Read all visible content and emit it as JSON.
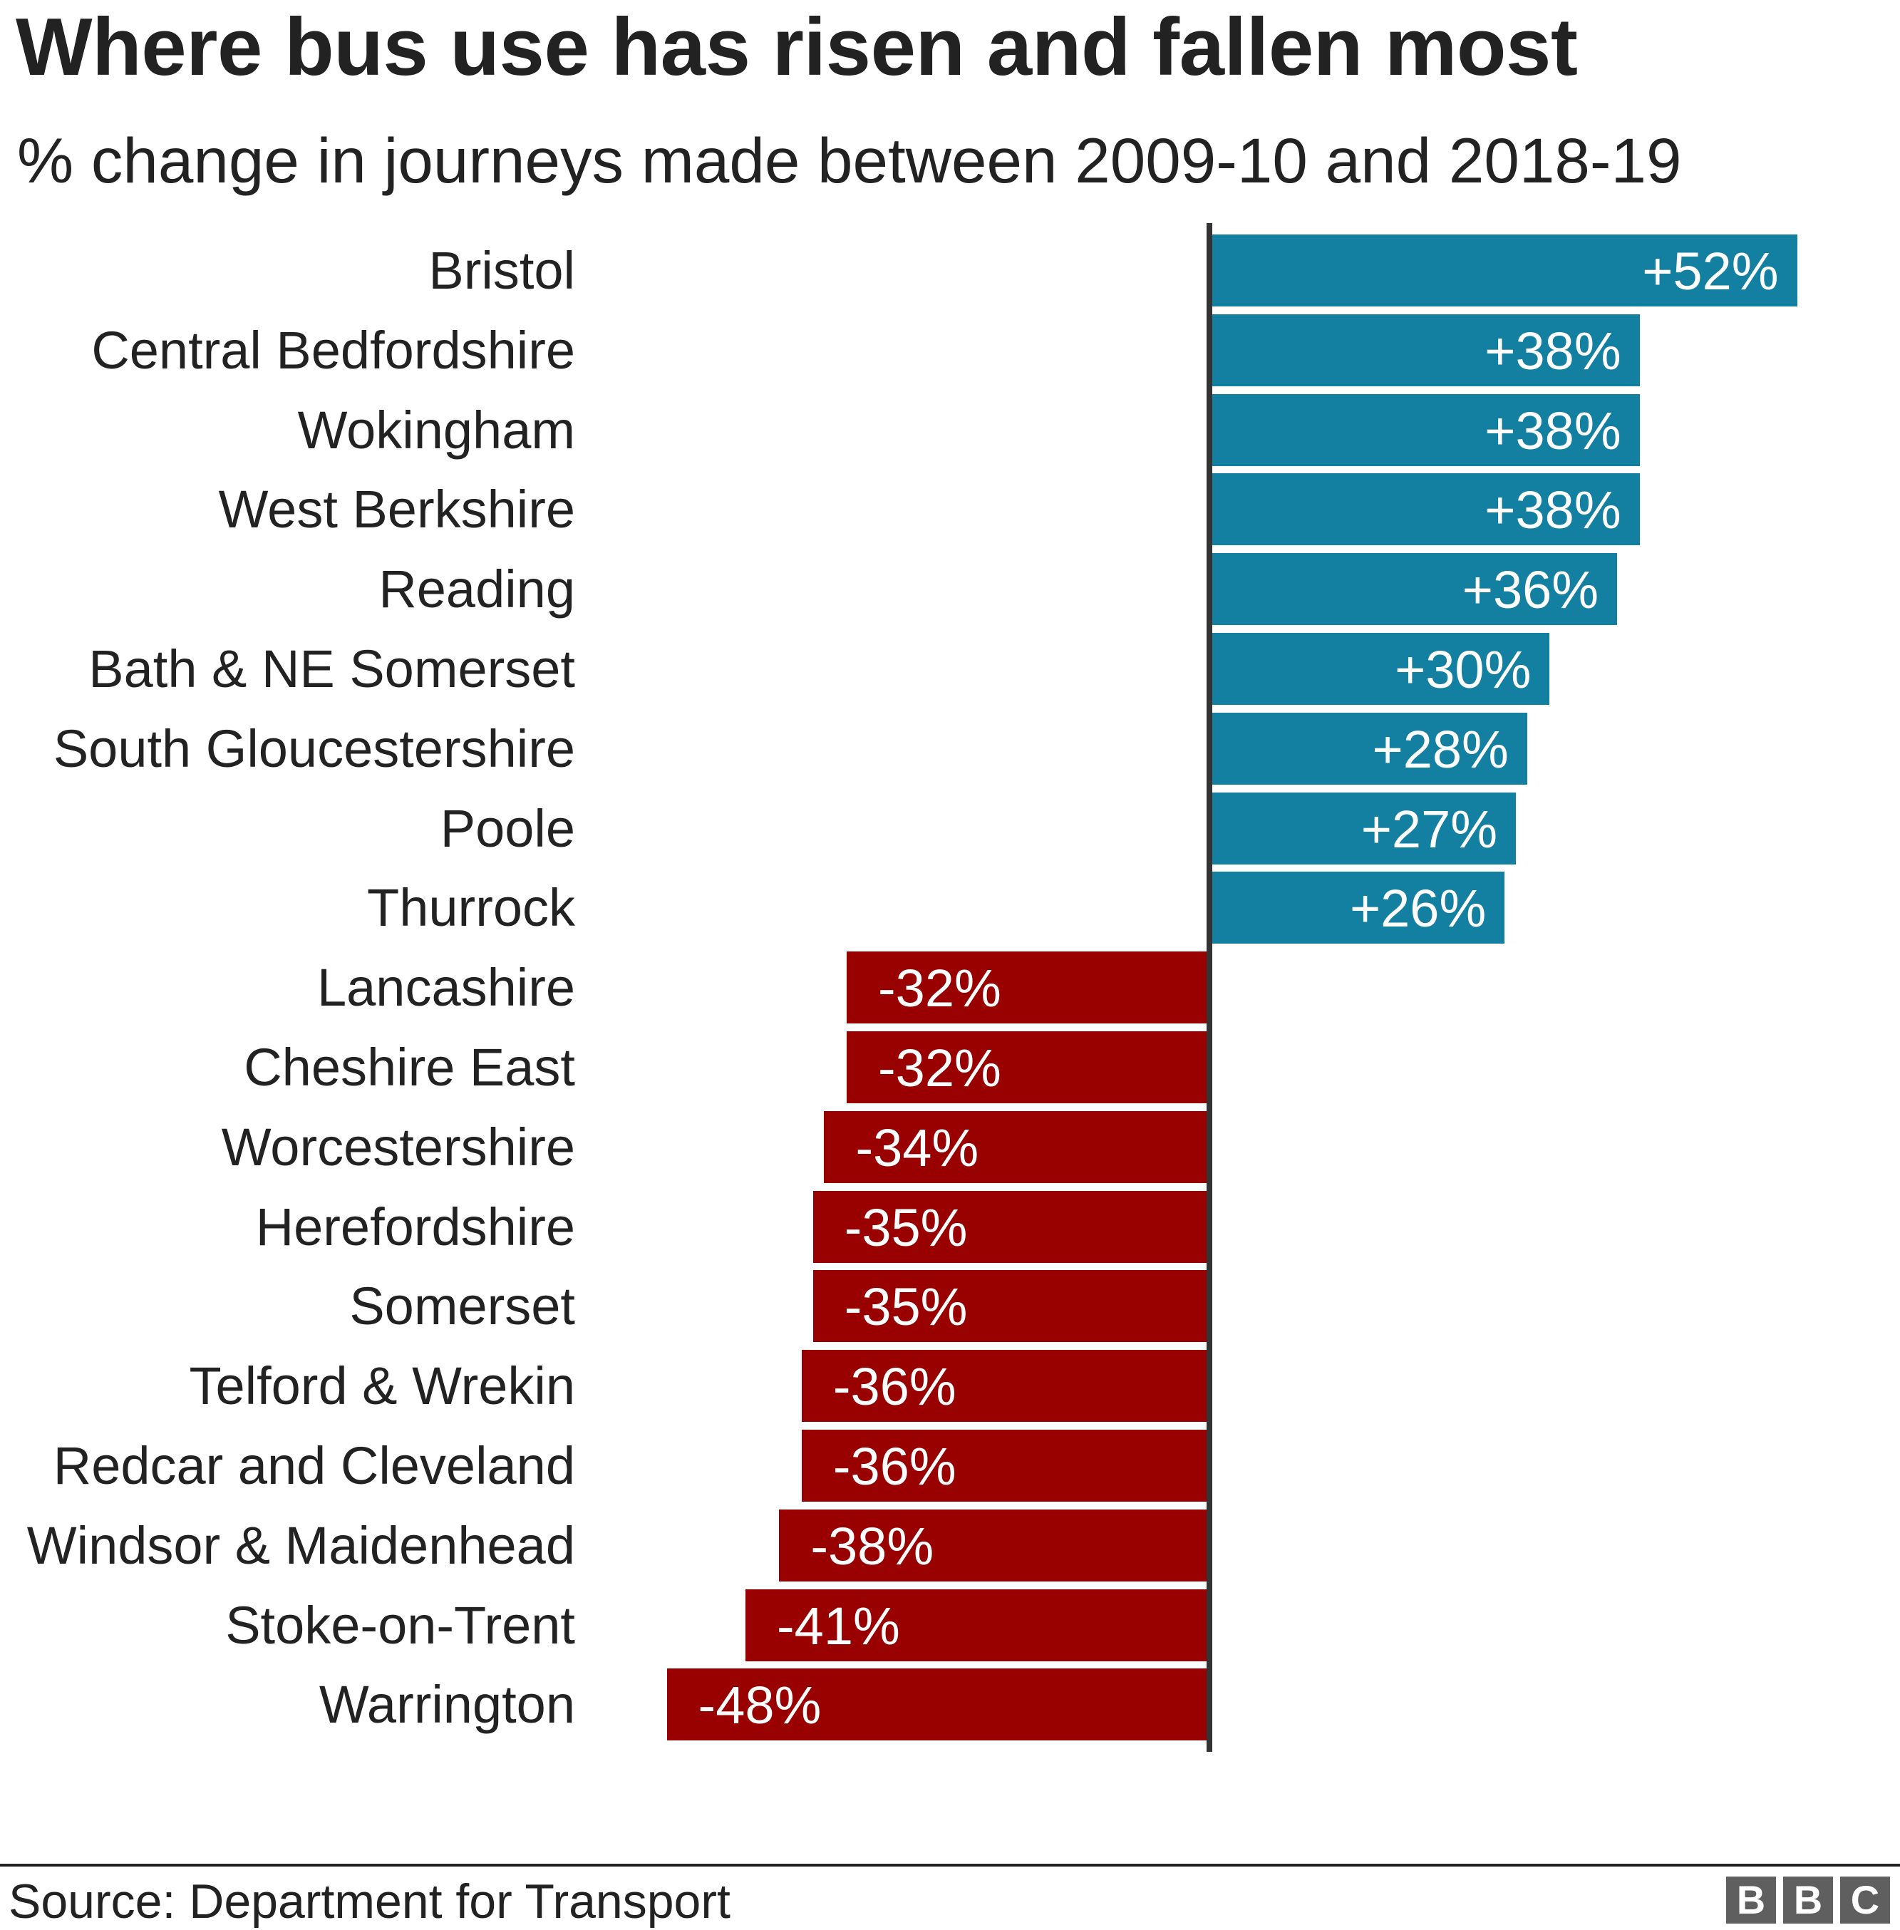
{
  "header": {
    "title": "Where bus use has risen and fallen most",
    "subtitle": "% change in journeys made between 2009-10 and 2018-19"
  },
  "footer": {
    "source": "Source: Department for Transport",
    "logo_letters": [
      "B",
      "B",
      "C"
    ]
  },
  "colors": {
    "positive": "#1380A1",
    "negative": "#990000",
    "axis": "#333333",
    "text": "#222222",
    "logo": "#5f5f5f"
  },
  "chart_data": {
    "type": "bar",
    "orientation": "horizontal",
    "title": "Where bus use has risen and fallen most",
    "subtitle": "% change in journeys made between 2009-10 and 2018-19",
    "xlabel": "",
    "ylabel": "",
    "grid": false,
    "legend": null,
    "source": "Source: Department for Transport",
    "categories": [
      "Bristol",
      "Central Bedfordshire",
      "Wokingham",
      "West Berkshire",
      "Reading",
      "Bath & NE Somerset",
      "South Gloucestershire",
      "Poole",
      "Thurrock",
      "Lancashire",
      "Cheshire East",
      "Worcestershire",
      "Herefordshire",
      "Somerset",
      "Telford & Wrekin",
      "Redcar and Cleveland",
      "Windsor & Maidenhead",
      "Stoke-on-Trent",
      "Warrington"
    ],
    "values": [
      52,
      38,
      38,
      38,
      36,
      30,
      28,
      27,
      26,
      -32,
      -32,
      -34,
      -35,
      -35,
      -36,
      -36,
      -38,
      -41,
      -48
    ],
    "labels": [
      "+52%",
      "+38%",
      "+38%",
      "+38%",
      "+36%",
      "+30%",
      "+28%",
      "+27%",
      "+26%",
      "-32%",
      "-32%",
      "-34%",
      "-35%",
      "-35%",
      "-36%",
      "-36%",
      "-38%",
      "-41%",
      "-48%"
    ],
    "xlim": [
      -50,
      55
    ]
  }
}
